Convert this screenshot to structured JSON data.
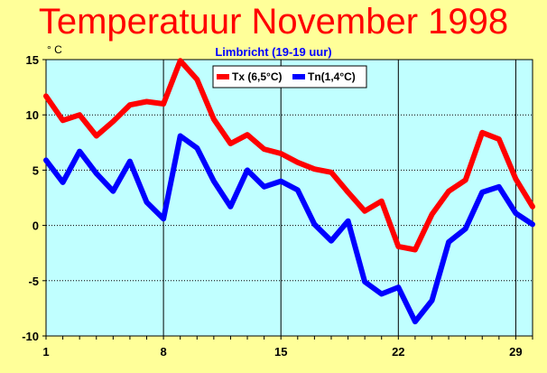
{
  "chart_data": {
    "type": "line",
    "title": "Temperatuur November 1998",
    "subtitle": "Limbricht (19-19 uur)",
    "unit_label": "° C",
    "x": [
      1,
      2,
      3,
      4,
      5,
      6,
      7,
      8,
      9,
      10,
      11,
      12,
      13,
      14,
      15,
      16,
      17,
      18,
      19,
      20,
      21,
      22,
      23,
      24,
      25,
      26,
      27,
      28,
      29,
      30
    ],
    "xticks": [
      "1",
      "8",
      "15",
      "22",
      "29"
    ],
    "xlim": [
      1,
      30
    ],
    "yticks": [
      "-10",
      "-5",
      "0",
      "5",
      "10",
      "15"
    ],
    "ylim": [
      -10,
      15
    ],
    "grid": true,
    "legend_position": "top-right",
    "series": [
      {
        "name": "Tx (6,5°C)",
        "color": "#FF0000",
        "values": [
          11.7,
          9.5,
          10.0,
          8.1,
          9.4,
          10.9,
          11.2,
          11.0,
          14.9,
          13.2,
          9.6,
          7.4,
          8.2,
          6.9,
          6.5,
          5.7,
          5.1,
          4.8,
          3.0,
          1.3,
          2.2,
          -1.9,
          -2.2,
          1.0,
          3.1,
          4.1,
          8.4,
          7.8,
          4.2,
          1.7
        ]
      },
      {
        "name": "Tn(1,4°C)",
        "color": "#0000FF",
        "values": [
          5.9,
          3.9,
          6.7,
          4.7,
          3.1,
          5.8,
          2.1,
          0.6,
          8.1,
          7.0,
          4.0,
          1.7,
          5.0,
          3.5,
          4.0,
          3.2,
          0.1,
          -1.4,
          0.4,
          -5.1,
          -6.2,
          -5.6,
          -8.7,
          -6.8,
          -1.5,
          -0.3,
          3.0,
          3.5,
          1.1,
          0.1
        ]
      }
    ]
  }
}
